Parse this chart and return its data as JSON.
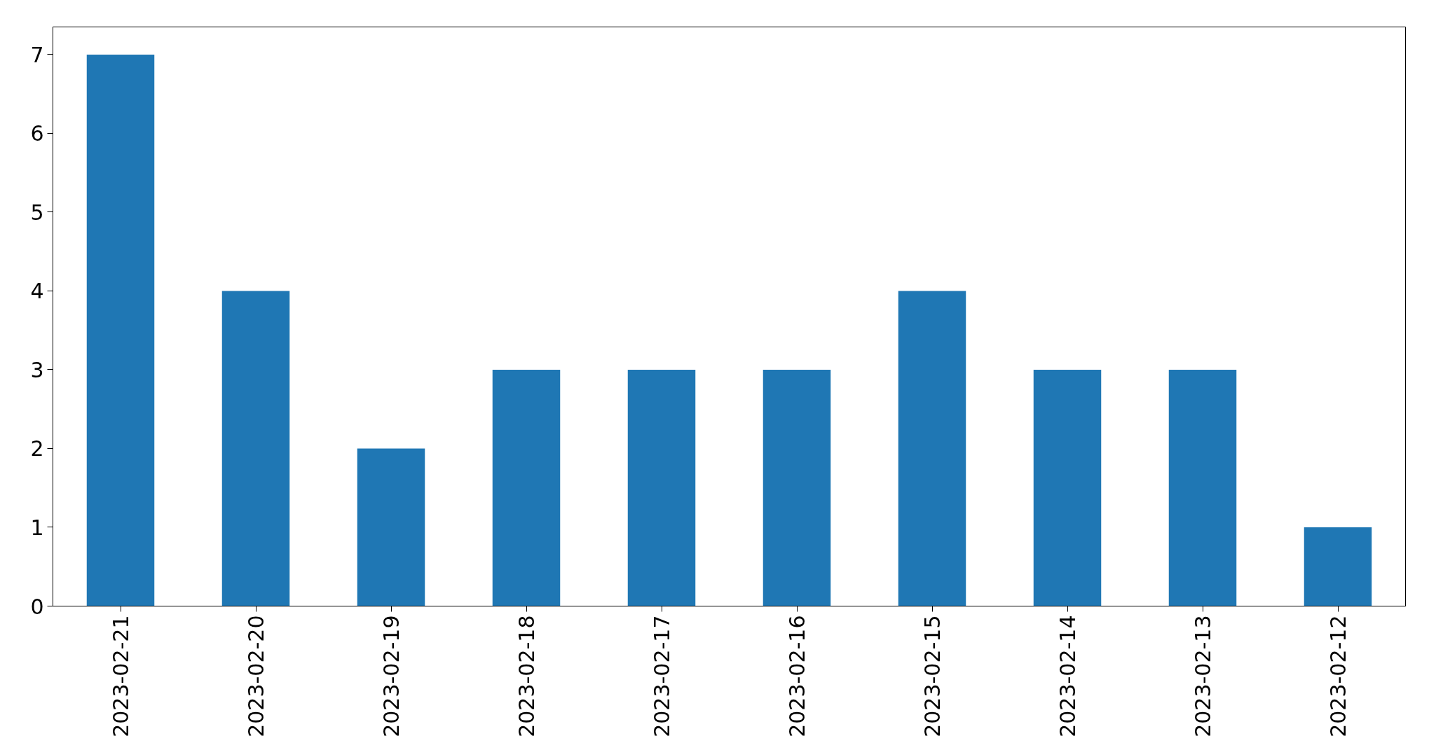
{
  "chart_data": {
    "type": "bar",
    "categories": [
      "2023-02-21",
      "2023-02-20",
      "2023-02-19",
      "2023-02-18",
      "2023-02-17",
      "2023-02-16",
      "2023-02-15",
      "2023-02-14",
      "2023-02-13",
      "2023-02-12"
    ],
    "values": [
      7,
      4,
      2,
      3,
      3,
      3,
      4,
      3,
      3,
      1
    ],
    "color": "#1f77b4",
    "ylim": [
      0,
      7.35
    ],
    "yticks": [
      0,
      1,
      2,
      3,
      4,
      5,
      6,
      7
    ],
    "grid": false
  }
}
